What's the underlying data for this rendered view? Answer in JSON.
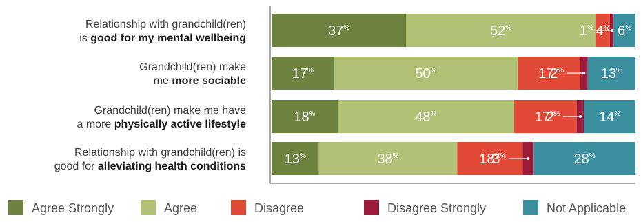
{
  "chart_data": {
    "type": "bar",
    "orientation": "horizontal",
    "stacked": true,
    "title": "",
    "xlabel": "",
    "ylabel": "",
    "xlim": [
      0,
      100
    ],
    "unit": "%",
    "categories": [
      {
        "prefix": "Relationship with grandchild(ren)",
        "line2_plain": "is ",
        "line2_bold": "good for my mental wellbeing",
        "line1_bold": ""
      },
      {
        "prefix": "Grandchild(ren) make",
        "line2_plain": "me ",
        "line2_bold": "more sociable",
        "line1_bold": ""
      },
      {
        "prefix": "Grandchild(ren) make me have",
        "line2_plain": "a more ",
        "line2_bold": "physically active lifestyle",
        "line1_bold": ""
      },
      {
        "prefix": "Relationship with grandchild(ren) is",
        "line2_plain": "good for ",
        "line2_bold": "alleviating health conditions",
        "line1_bold": ""
      }
    ],
    "series": [
      {
        "name": "Agree Strongly",
        "color": "#6f8340",
        "values": [
          37,
          17,
          18,
          13
        ]
      },
      {
        "name": "Agree",
        "color": "#b1c277",
        "values": [
          52,
          50,
          48,
          38
        ]
      },
      {
        "name": "Disagree",
        "color": "#e04a36",
        "values": [
          4,
          17,
          17,
          18
        ]
      },
      {
        "name": "Disagree Strongly",
        "color": "#9b1b3b",
        "values": [
          1,
          2,
          2,
          3
        ]
      },
      {
        "name": "Not Applicable",
        "color": "#3b8f9f",
        "values": [
          6,
          13,
          14,
          28
        ]
      }
    ],
    "legend_position": "bottom",
    "grid": false
  }
}
